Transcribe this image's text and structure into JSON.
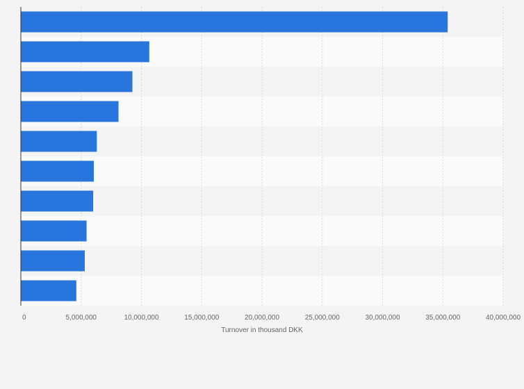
{
  "chart_data": {
    "type": "bar",
    "orientation": "horizontal",
    "categories": [
      "",
      "",
      "",
      "",
      "",
      "",
      "",
      "",
      "",
      ""
    ],
    "values": [
      35400000,
      10650000,
      9250000,
      8100000,
      6300000,
      6050000,
      6000000,
      5450000,
      5300000,
      4600000
    ],
    "title": "",
    "xlabel": "Turnover in thousand DKK",
    "ylabel": "",
    "xlim": [
      0,
      40000000
    ],
    "ticks": [
      0,
      5000000,
      10000000,
      15000000,
      20000000,
      25000000,
      30000000,
      35000000,
      40000000
    ],
    "tick_labels": [
      "0",
      "5,000,000",
      "10,000,000",
      "15,000,000",
      "20,000,000",
      "25,000,000",
      "30,000,000",
      "35,000,000",
      "40,000,000"
    ],
    "grid": true,
    "legend": "none",
    "colors": {
      "bar": "#2876dd",
      "band_light": "#fafafa",
      "band_dark": "#f4f4f4",
      "grid": "#dcdcdc",
      "axis": "#333333",
      "text": "#666666"
    }
  }
}
